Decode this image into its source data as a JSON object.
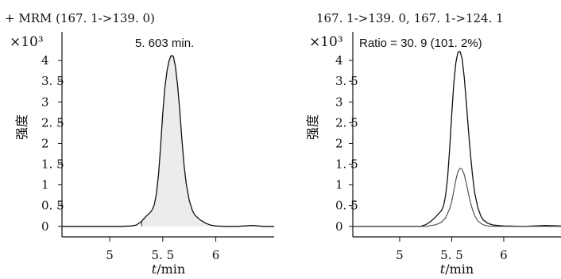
{
  "chart_data": [
    {
      "type": "line",
      "title": "+ MRM (167. 1->139. 0)",
      "multiplier_label": "×10³",
      "peak_annotation": "5. 603 min.",
      "xlabel": "t/min",
      "ylabel": "强度",
      "xlim": [
        4.55,
        6.55
      ],
      "ylim": [
        -0.1,
        4.5
      ],
      "x_ticks": [
        {
          "v": 5,
          "label": "5"
        },
        {
          "v": 5.5,
          "label": "5. 5"
        },
        {
          "v": 6,
          "label": "6"
        }
      ],
      "y_ticks": [
        {
          "v": 0,
          "label": "0"
        },
        {
          "v": 0.5,
          "label": "0. 5"
        },
        {
          "v": 1,
          "label": "1"
        },
        {
          "v": 1.5,
          "label": "1. 5"
        },
        {
          "v": 2,
          "label": "2"
        },
        {
          "v": 2.5,
          "label": "2. 5"
        },
        {
          "v": 3,
          "label": "3"
        },
        {
          "v": 3.5,
          "label": "3. 5"
        },
        {
          "v": 4,
          "label": "4"
        }
      ],
      "shaded_peak": true,
      "series": [
        {
          "color": "#111111",
          "x": [
            4.55,
            4.9,
            5.1,
            5.2,
            5.25,
            5.3,
            5.35,
            5.38,
            5.4,
            5.42,
            5.44,
            5.46,
            5.48,
            5.5,
            5.52,
            5.54,
            5.56,
            5.58,
            5.6,
            5.62,
            5.64,
            5.66,
            5.68,
            5.7,
            5.72,
            5.75,
            5.78,
            5.8,
            5.85,
            5.9,
            5.95,
            6.0,
            6.1,
            6.2,
            6.35,
            6.45,
            6.55
          ],
          "y": [
            0.0,
            0.0,
            0.0,
            0.01,
            0.03,
            0.12,
            0.26,
            0.33,
            0.4,
            0.52,
            0.78,
            1.25,
            1.95,
            2.72,
            3.35,
            3.75,
            4.0,
            4.12,
            4.1,
            3.85,
            3.4,
            2.8,
            2.1,
            1.5,
            1.05,
            0.62,
            0.38,
            0.28,
            0.16,
            0.08,
            0.03,
            0.01,
            0.0,
            0.0,
            0.02,
            0.0,
            0.0
          ]
        }
      ]
    },
    {
      "type": "line",
      "title": "167. 1->139. 0,  167. 1->124. 1",
      "multiplier_label": "×10³",
      "ratio_annotation": "Ratio = 30. 9 (101. 2%)",
      "xlabel": "t/min",
      "ylabel": "强度",
      "xlim": [
        4.55,
        6.55
      ],
      "ylim": [
        -0.1,
        4.5
      ],
      "x_ticks": [
        {
          "v": 5,
          "label": "5"
        },
        {
          "v": 5.5,
          "label": "5. 5"
        },
        {
          "v": 6,
          "label": "6"
        }
      ],
      "y_ticks": [
        {
          "v": 0,
          "label": "0"
        },
        {
          "v": 0.5,
          "label": "0. 5"
        },
        {
          "v": 1,
          "label": "1"
        },
        {
          "v": 1.5,
          "label": "1. 5"
        },
        {
          "v": 2,
          "label": "2"
        },
        {
          "v": 2.5,
          "label": "2. 5"
        },
        {
          "v": 3,
          "label": "3"
        },
        {
          "v": 3.5,
          "label": "3. 5"
        },
        {
          "v": 4,
          "label": "4"
        }
      ],
      "shaded_peak": false,
      "series": [
        {
          "color": "#111111",
          "x": [
            4.55,
            5.0,
            5.2,
            5.25,
            5.3,
            5.35,
            5.38,
            5.4,
            5.42,
            5.44,
            5.46,
            5.48,
            5.5,
            5.52,
            5.54,
            5.56,
            5.58,
            5.6,
            5.62,
            5.64,
            5.66,
            5.68,
            5.7,
            5.72,
            5.75,
            5.78,
            5.8,
            5.85,
            5.9,
            6.0,
            6.2,
            6.4,
            6.55
          ],
          "y": [
            0.0,
            0.0,
            0.0,
            0.04,
            0.12,
            0.24,
            0.32,
            0.38,
            0.48,
            0.72,
            1.15,
            1.85,
            2.7,
            3.45,
            3.95,
            4.2,
            4.22,
            4.05,
            3.6,
            3.0,
            2.35,
            1.75,
            1.22,
            0.82,
            0.46,
            0.25,
            0.16,
            0.07,
            0.03,
            0.01,
            0.0,
            0.02,
            0.01
          ]
        },
        {
          "color": "#555555",
          "x": [
            4.55,
            5.0,
            5.25,
            5.35,
            5.4,
            5.44,
            5.48,
            5.5,
            5.52,
            5.54,
            5.56,
            5.58,
            5.6,
            5.62,
            5.64,
            5.66,
            5.68,
            5.7,
            5.72,
            5.75,
            5.8,
            5.85,
            5.9,
            6.0,
            6.2,
            6.55
          ],
          "y": [
            0.0,
            0.0,
            0.0,
            0.04,
            0.1,
            0.2,
            0.42,
            0.6,
            0.85,
            1.12,
            1.32,
            1.4,
            1.38,
            1.25,
            1.04,
            0.8,
            0.58,
            0.4,
            0.26,
            0.13,
            0.04,
            0.01,
            0.0,
            0.0,
            0.0,
            0.0
          ]
        }
      ]
    }
  ]
}
